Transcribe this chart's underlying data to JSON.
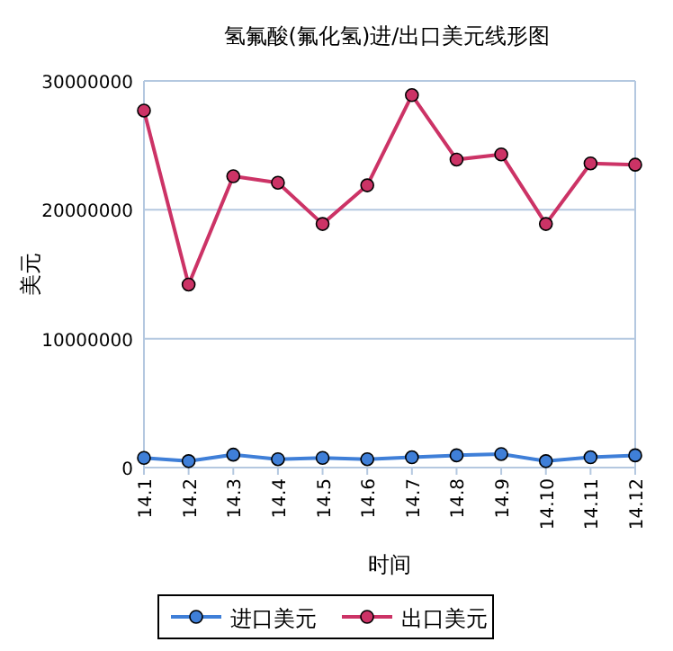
{
  "chart_data": {
    "type": "line",
    "title": "氢氟酸(氟化氢)进/出口美元线形图",
    "xlabel": "时间",
    "ylabel": "美元",
    "categories": [
      "14.1",
      "14.2",
      "14.3",
      "14.4",
      "14.5",
      "14.6",
      "14.7",
      "14.8",
      "14.9",
      "14.10",
      "14.11",
      "14.12"
    ],
    "series": [
      {
        "name": "进口美元",
        "color": "#3f7fd8",
        "values": [
          750000,
          500000,
          1000000,
          650000,
          750000,
          650000,
          800000,
          950000,
          1050000,
          500000,
          800000,
          950000
        ]
      },
      {
        "name": "出口美元",
        "color": "#cc3366",
        "values": [
          27700000,
          14200000,
          22600000,
          22100000,
          18900000,
          21900000,
          28900000,
          23900000,
          24300000,
          18900000,
          23600000,
          23500000
        ]
      }
    ],
    "ylim": [
      0,
      30000000
    ],
    "yticks": [
      0,
      10000000,
      20000000,
      30000000
    ],
    "grid": "y",
    "legend": "bottom",
    "marker": "circle",
    "line_style": "solid"
  }
}
